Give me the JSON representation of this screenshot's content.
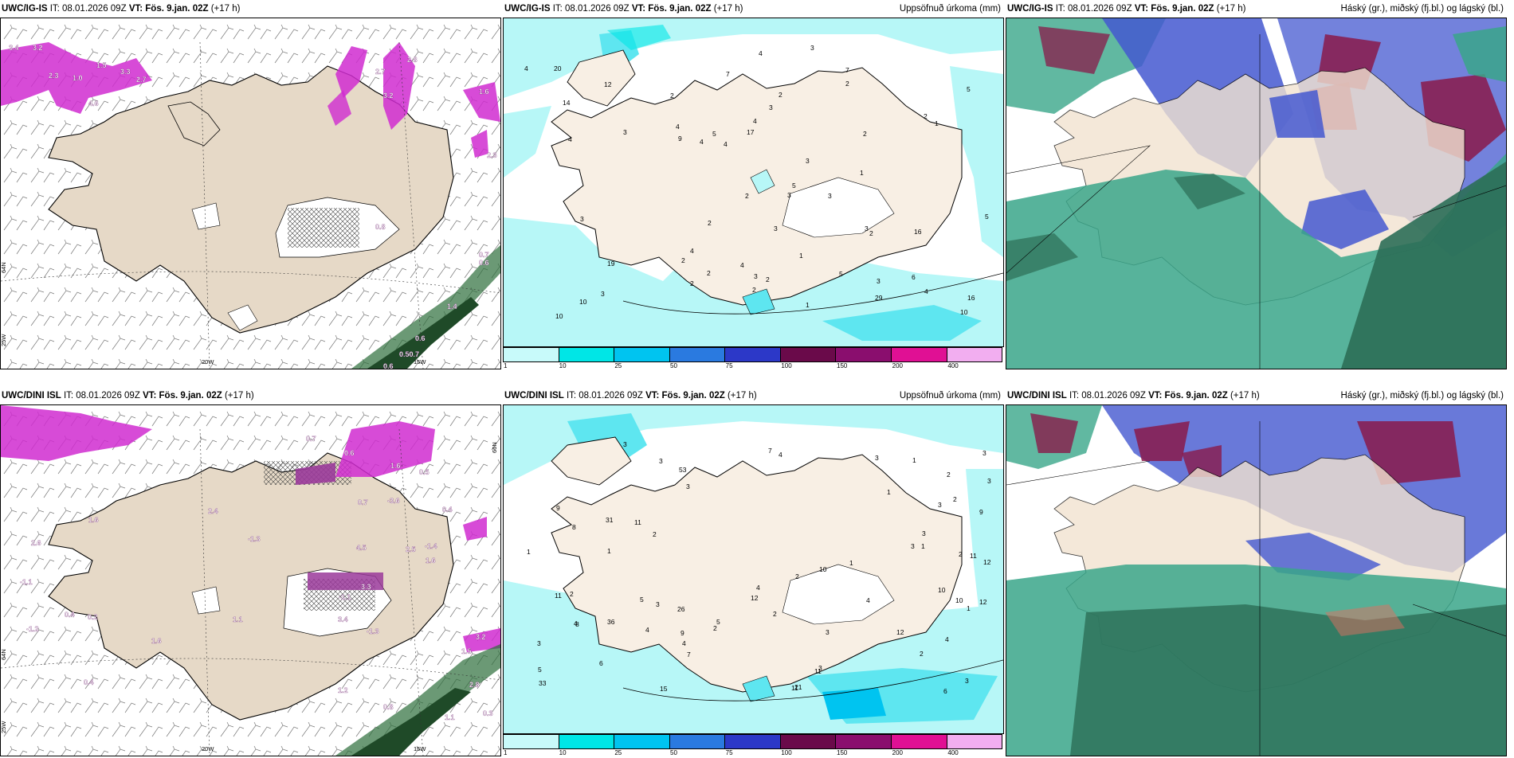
{
  "panels": [
    {
      "model": "UWC/IG-IS",
      "it": "IT: 08.01.2026 09Z",
      "vt_label": "VT:",
      "vt": "Fös. 9.jan. 02Z",
      "lead": "(+17 h)",
      "title": "",
      "axis": {
        "lon1": "20W",
        "lon2": "15W",
        "lat1": "64N",
        "lat2": "25W"
      },
      "values": [
        "3.4",
        "3.2",
        "2.3",
        "1.0",
        "1.5",
        "3.3",
        "2.7",
        "4.6",
        "2.7",
        "3.2",
        "2.8",
        "1.6",
        "2.3",
        "0.8",
        "0.6",
        "1.4",
        "0.6",
        "0.50.7",
        "0.6",
        "0.7"
      ]
    },
    {
      "model": "UWC/IG-IS",
      "it": "IT: 08.01.2026 09Z",
      "vt_label": "VT:",
      "vt": "Fös. 9.jan. 02Z",
      "lead": "(+17 h)",
      "title": "Uppsöfnuð úrkoma (mm)",
      "values": [
        "10",
        "16",
        "5",
        "3",
        "7",
        "3",
        "6",
        "7",
        "3",
        "2",
        "10",
        "9",
        "2",
        "4",
        "5",
        "4",
        "3",
        "3",
        "2",
        "5",
        "4",
        "3",
        "2",
        "3",
        "2",
        "2",
        "5",
        "3",
        "1",
        "1",
        "4",
        "2",
        "2",
        "10",
        "3",
        "1",
        "3",
        "2",
        "4",
        "4",
        "3",
        "4",
        "2",
        "2",
        "1",
        "4",
        "4",
        "2",
        "5",
        "16",
        "14",
        "17",
        "20",
        "29",
        "19",
        "12",
        "2",
        "4",
        "3"
      ]
    },
    {
      "model": "UWC/IG-IS",
      "it": "IT: 08.01.2026 09Z",
      "vt_label": "VT:",
      "vt": "Fös. 9.jan. 02Z",
      "lead": "(+17 h)",
      "title": "Háský (gr.), miðský (fj.bl.) og lágský (bl.)"
    },
    {
      "model": "UWC/DINI ISL",
      "it": "IT: 08.01.2026 09Z",
      "vt_label": "VT:",
      "vt": "Fös. 9.jan. 02Z",
      "lead": "(+17 h)",
      "title": "",
      "axis": {
        "lon1": "20W",
        "lon2": "15W",
        "lat1": "66N",
        "lat2": "64N",
        "lat3": "25W"
      },
      "values": [
        "3.4",
        "3.2",
        "2.5",
        "1.5",
        "1.2",
        "-3.6",
        "-1.4",
        "-1.3",
        "2.8",
        "0.8",
        "3.3",
        "-1.1",
        "-1.2",
        "-1.3",
        "1.6",
        "1.1",
        "0.5",
        "0.4",
        "1.6",
        "2.4",
        "1.1",
        "-1.1",
        "4.5",
        "0.6",
        "1.6",
        "0.4",
        "1.6",
        "0.7",
        "0.3",
        "0.2",
        "0.4",
        "0.7",
        "2.6"
      ]
    },
    {
      "model": "UWC/DINI ISL",
      "it": "IT: 08.01.2026 09Z",
      "vt_label": "VT:",
      "vt": "Fös. 9.jan. 02Z",
      "lead": "(+17 h)",
      "title": "Uppsöfnuð úrkoma (mm)",
      "values": [
        "11",
        "8",
        "9",
        "7",
        "10",
        "11",
        "6",
        "3",
        "6",
        "3",
        "7",
        "3",
        "10",
        "9",
        "10",
        "12",
        "12",
        "11",
        "4",
        "3",
        "2",
        "1",
        "3",
        "4",
        "3",
        "2",
        "3",
        "2",
        "2",
        "1",
        "1",
        "3",
        "4",
        "5",
        "8",
        "11",
        "3",
        "4",
        "2",
        "3",
        "3",
        "1",
        "3",
        "4",
        "2",
        "3",
        "4",
        "5",
        "2",
        "3",
        "1",
        "1",
        "4",
        "2",
        "1",
        "9",
        "11",
        "12",
        "12",
        "15",
        "36",
        "31",
        "53",
        "26",
        "5",
        "33",
        "21",
        "2"
      ]
    },
    {
      "model": "UWC/DINI ISL",
      "it": "IT: 08.01.2026 09Z",
      "vt_label": "VT:",
      "vt": "Fös. 9.jan. 02Z",
      "lead": "(+17 h)",
      "title": "Háský (gr.), miðský (fj.bl.) og lágský (bl.)"
    }
  ],
  "colorbar": {
    "colors": [
      "#c8fafa",
      "#00e6e6",
      "#00c4f0",
      "#2a7ae0",
      "#2c38c8",
      "#6a0a4a",
      "#8a0e6e",
      "#e01094",
      "#f2aef0"
    ],
    "labels": [
      "1",
      "10",
      "25",
      "50",
      "75",
      "100",
      "150",
      "200",
      "400"
    ]
  },
  "colors": {
    "land": "#f8efe4",
    "land_dark": "#e6d9c7",
    "precip_light": "#b7f7f7",
    "precip_mid": "#5ee6f0",
    "sea_high": "#2c6e56",
    "sea_mid": "#3aa68a",
    "mid_cloud": "#4458d0",
    "high_cloud": "#8a1a4a",
    "purple": "#d02bd0"
  }
}
